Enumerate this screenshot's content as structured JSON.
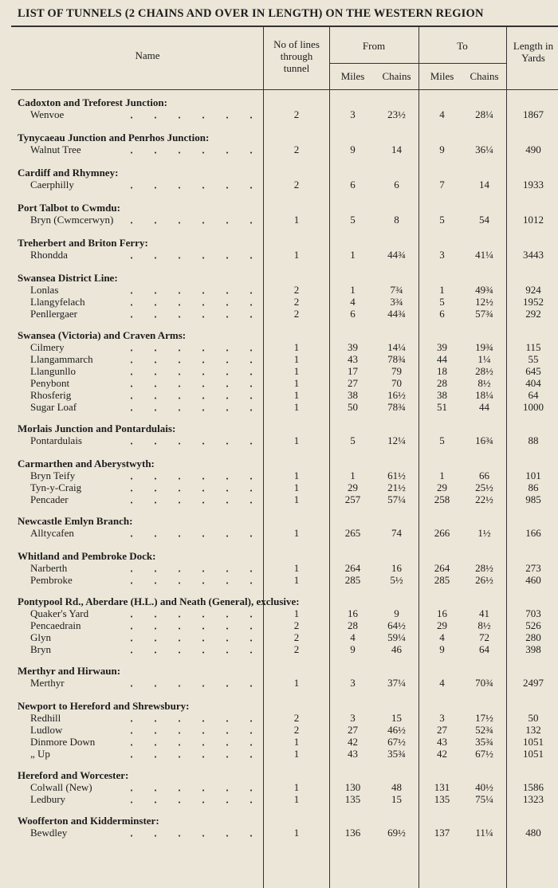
{
  "header": {
    "title": "LIST OF TUNNELS (2 CHAINS AND OVER IN LENGTH) ON THE WESTERN REGION"
  },
  "table": {
    "columns": {
      "name": "Name",
      "lines": "No of lines through tunnel",
      "from": "From",
      "to": "To",
      "from_miles": "Miles",
      "from_chains": "Chains",
      "to_miles": "Miles",
      "to_chains": "Chains",
      "length": "Length in Yards"
    },
    "groups": [
      {
        "title": "Cadoxton and Treforest Junction:",
        "rows": [
          [
            "Wenvoe",
            "2",
            "3",
            "23½",
            "4",
            "28¼",
            "1867"
          ]
        ]
      },
      {
        "title": "Tynycaeau Junction and Penrhos Junction:",
        "rows": [
          [
            "Walnut Tree",
            "2",
            "9",
            "14",
            "9",
            "36¼",
            "490"
          ]
        ]
      },
      {
        "title": "Cardiff and Rhymney:",
        "rows": [
          [
            "Caerphilly",
            "2",
            "6",
            "6",
            "7",
            "14",
            "1933"
          ]
        ]
      },
      {
        "title": "Port Talbot to Cwmdu:",
        "rows": [
          [
            "Bryn (Cwmcerwyn)",
            "1",
            "5",
            "8",
            "5",
            "54",
            "1012"
          ]
        ]
      },
      {
        "title": "Treherbert and Briton Ferry:",
        "rows": [
          [
            "Rhondda",
            "1",
            "1",
            "44¾",
            "3",
            "41¼",
            "3443"
          ]
        ]
      },
      {
        "title": "Swansea District Line:",
        "rows": [
          [
            "Lonlas",
            "2",
            "1",
            "7¾",
            "1",
            "49¾",
            "924"
          ],
          [
            "Llangyfelach",
            "2",
            "4",
            "3¾",
            "5",
            "12½",
            "1952"
          ],
          [
            "Penllergaer",
            "2",
            "6",
            "44¾",
            "6",
            "57¾",
            "292"
          ]
        ]
      },
      {
        "title": "Swansea (Victoria) and Craven Arms:",
        "rows": [
          [
            "Cilmery",
            "1",
            "39",
            "14¼",
            "39",
            "19¾",
            "115"
          ],
          [
            "Llangammarch",
            "1",
            "43",
            "78¾",
            "44",
            "1¼",
            "55"
          ],
          [
            "Llangunllo",
            "1",
            "17",
            "79",
            "18",
            "28½",
            "645"
          ],
          [
            "Penybont",
            "1",
            "27",
            "70",
            "28",
            "8½",
            "404"
          ],
          [
            "Rhosferig",
            "1",
            "38",
            "16½",
            "38",
            "18¼",
            "64"
          ],
          [
            "Sugar Loaf",
            "1",
            "50",
            "78¾",
            "51",
            "44",
            "1000"
          ]
        ]
      },
      {
        "title": "Morlais Junction and Pontardulais:",
        "rows": [
          [
            "Pontardulais",
            "1",
            "5",
            "12¼",
            "5",
            "16¾",
            "88"
          ]
        ]
      },
      {
        "title": "Carmarthen and Aberystwyth:",
        "rows": [
          [
            "Bryn Teify",
            "1",
            "1",
            "61½",
            "1",
            "66",
            "101"
          ],
          [
            "Tyn-y-Craig",
            "1",
            "29",
            "21½",
            "29",
            "25½",
            "86"
          ],
          [
            "Pencader",
            "1",
            "257",
            "57¼",
            "258",
            "22½",
            "985"
          ]
        ]
      },
      {
        "title": "Newcastle Emlyn Branch:",
        "rows": [
          [
            "Alltycafen",
            "1",
            "265",
            "74",
            "266",
            "1½",
            "166"
          ]
        ]
      },
      {
        "title": "Whitland and Pembroke Dock:",
        "rows": [
          [
            "Narberth",
            "1",
            "264",
            "16",
            "264",
            "28½",
            "273"
          ],
          [
            "Pembroke",
            "1",
            "285",
            "5½",
            "285",
            "26½",
            "460"
          ]
        ]
      },
      {
        "title": "Pontypool Rd., Aberdare (H.L.) and Neath (General), exclusive:",
        "rows": [
          [
            "Quaker's Yard",
            "1",
            "16",
            "9",
            "16",
            "41",
            "703"
          ],
          [
            "Pencaedrain",
            "2",
            "28",
            "64½",
            "29",
            "8½",
            "526"
          ],
          [
            "Glyn",
            "2",
            "4",
            "59¼",
            "4",
            "72",
            "280"
          ],
          [
            "Bryn",
            "2",
            "9",
            "46",
            "9",
            "64",
            "398"
          ]
        ]
      },
      {
        "title": "Merthyr and Hirwaun:",
        "rows": [
          [
            "Merthyr",
            "1",
            "3",
            "37¼",
            "4",
            "70¾",
            "2497"
          ]
        ]
      },
      {
        "title": "Newport to Hereford and Shrewsbury:",
        "rows": [
          [
            "Redhill",
            "2",
            "3",
            "15",
            "3",
            "17½",
            "50"
          ],
          [
            "Ludlow",
            "2",
            "27",
            "46½",
            "27",
            "52¾",
            "132"
          ],
          [
            "Dinmore Down",
            "1",
            "42",
            "67½",
            "43",
            "35¾",
            "1051"
          ],
          [
            "„ Up",
            "1",
            "43",
            "35¾",
            "42",
            "67½",
            "1051"
          ]
        ]
      },
      {
        "title": "Hereford and Worcester:",
        "rows": [
          [
            "Colwall (New)",
            "1",
            "130",
            "48",
            "131",
            "40½",
            "1586"
          ],
          [
            "Ledbury",
            "1",
            "135",
            "15",
            "135",
            "75¼",
            "1323"
          ]
        ]
      },
      {
        "title": "Woofferton and Kidderminster:",
        "rows": [
          [
            "Bewdley",
            "1",
            "136",
            "69½",
            "137",
            "11¼",
            "480"
          ]
        ]
      }
    ]
  }
}
